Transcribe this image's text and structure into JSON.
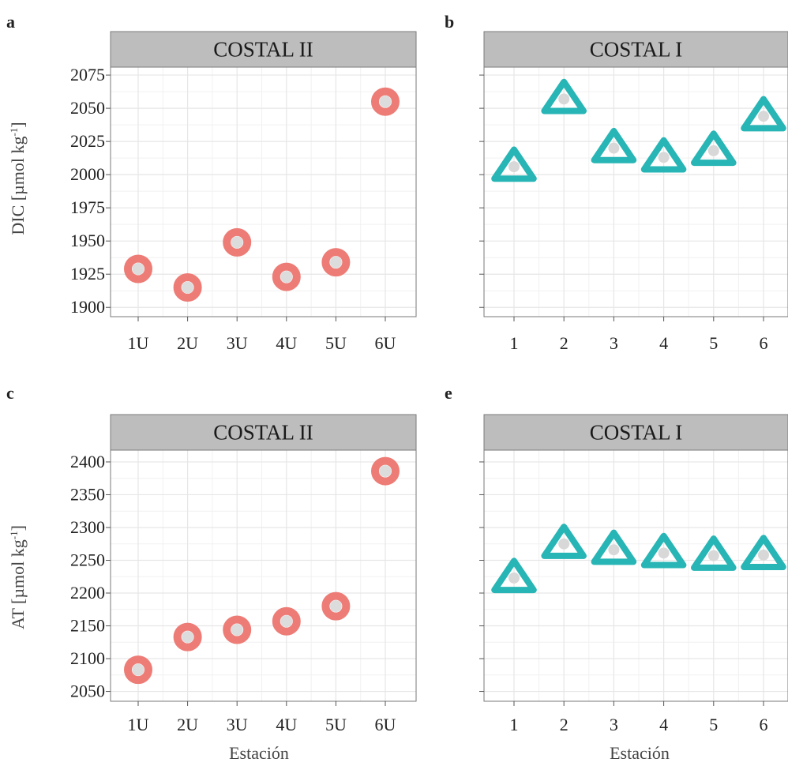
{
  "chart_data": [
    {
      "type": "scatter",
      "panel_label": "a",
      "facet": "COSTAL II",
      "ylabel_main": "DIC [µmol kg",
      "ylabel_sup": "-1",
      "ylabel_close": "]",
      "xlabel": "",
      "categories": [
        "1U",
        "2U",
        "3U",
        "4U",
        "5U",
        "6U"
      ],
      "values": [
        1929,
        1915,
        1949,
        1923,
        1934,
        2055
      ],
      "ylim": [
        1893,
        2081
      ],
      "yticks": [
        "1900",
        "1925",
        "1950",
        "1975",
        "2000",
        "2025",
        "2050",
        "2075"
      ],
      "marker": "circle",
      "color": "#ee7c76"
    },
    {
      "type": "scatter",
      "panel_label": "b",
      "facet": "COSTAL I",
      "ylabel_main": "",
      "ylabel_sup": "",
      "ylabel_close": "",
      "xlabel": "",
      "categories": [
        "1",
        "2",
        "3",
        "4",
        "5",
        "6"
      ],
      "values": [
        2006,
        2057,
        2020,
        2013,
        2018,
        2044
      ],
      "ylim": [
        1893,
        2081
      ],
      "yticks": [],
      "marker": "triangle",
      "color": "#27b5b5"
    },
    {
      "type": "scatter",
      "panel_label": "c",
      "facet": "COSTAL II",
      "ylabel_main": "AT [µmol kg",
      "ylabel_sup": "-1",
      "ylabel_close": "]",
      "xlabel": "Estación",
      "categories": [
        "1U",
        "2U",
        "3U",
        "4U",
        "5U",
        "6U"
      ],
      "values": [
        2083,
        2133,
        2144,
        2157,
        2180,
        2386
      ],
      "ylim": [
        2035,
        2418
      ],
      "yticks": [
        "2050",
        "2100",
        "2150",
        "2200",
        "2250",
        "2300",
        "2350",
        "2400"
      ],
      "marker": "circle",
      "color": "#ee7c76"
    },
    {
      "type": "scatter",
      "panel_label": "e",
      "facet": "COSTAL I",
      "ylabel_main": "",
      "ylabel_sup": "",
      "ylabel_close": "",
      "xlabel": "Estación",
      "categories": [
        "1",
        "2",
        "3",
        "4",
        "5",
        "6"
      ],
      "values": [
        2223,
        2275,
        2266,
        2261,
        2257,
        2258
      ],
      "ylim": [
        2035,
        2418
      ],
      "yticks": [],
      "marker": "triangle",
      "color": "#27b5b5"
    }
  ]
}
